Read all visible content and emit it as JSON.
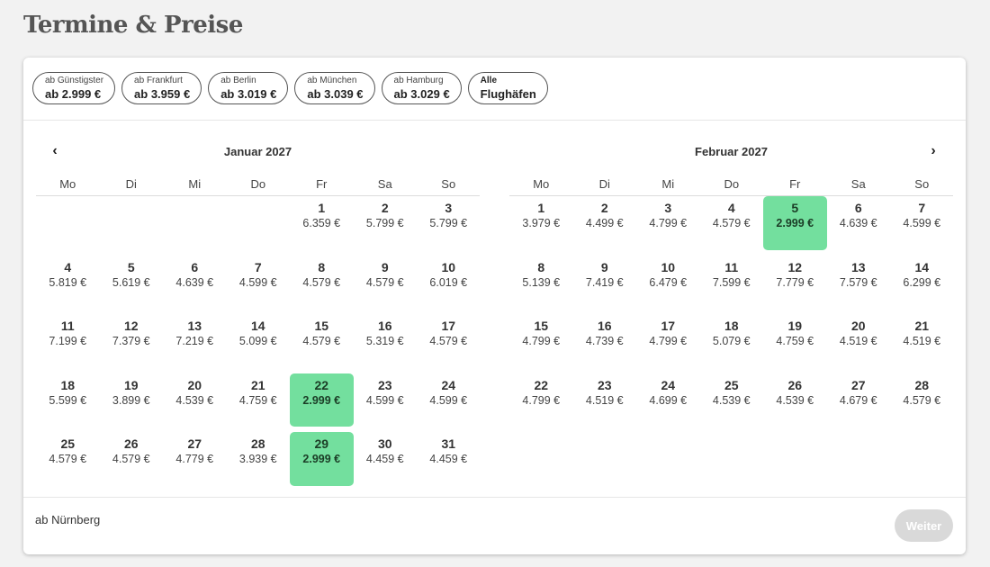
{
  "page_title": "Termine & Preise",
  "airports": [
    {
      "label": "ab Günstigster",
      "price": "ab 2.999 €"
    },
    {
      "label": "ab Frankfurt",
      "price": "ab 3.959 €"
    },
    {
      "label": "ab Berlin",
      "price": "ab 3.019 €"
    },
    {
      "label": "ab München",
      "price": "ab 3.039 €"
    },
    {
      "label": "ab Hamburg",
      "price": "ab 3.029 €"
    },
    {
      "label": "Alle",
      "price": "Flughäfen"
    }
  ],
  "nav": {
    "prev_icon": "chevron-left-icon",
    "next_icon": "chevron-right-icon"
  },
  "weekdays": [
    "Mo",
    "Di",
    "Mi",
    "Do",
    "Fr",
    "Sa",
    "So"
  ],
  "colors": {
    "best_price": "#73df9e",
    "button_disabled": "#d9d9d9"
  },
  "months": [
    {
      "title": "Januar 2027",
      "offset": 4,
      "days": [
        {
          "day": "1",
          "price": "6.359 €"
        },
        {
          "day": "2",
          "price": "5.799 €"
        },
        {
          "day": "3",
          "price": "5.799 €"
        },
        {
          "day": "4",
          "price": "5.819 €"
        },
        {
          "day": "5",
          "price": "5.619 €"
        },
        {
          "day": "6",
          "price": "4.639 €"
        },
        {
          "day": "7",
          "price": "4.599 €"
        },
        {
          "day": "8",
          "price": "4.579 €"
        },
        {
          "day": "9",
          "price": "4.579 €"
        },
        {
          "day": "10",
          "price": "6.019 €"
        },
        {
          "day": "11",
          "price": "7.199 €"
        },
        {
          "day": "12",
          "price": "7.379 €"
        },
        {
          "day": "13",
          "price": "7.219 €"
        },
        {
          "day": "14",
          "price": "5.099 €"
        },
        {
          "day": "15",
          "price": "4.579 €"
        },
        {
          "day": "16",
          "price": "5.319 €"
        },
        {
          "day": "17",
          "price": "4.579 €"
        },
        {
          "day": "18",
          "price": "5.599 €"
        },
        {
          "day": "19",
          "price": "3.899 €"
        },
        {
          "day": "20",
          "price": "4.539 €"
        },
        {
          "day": "21",
          "price": "4.759 €"
        },
        {
          "day": "22",
          "price": "2.999 €",
          "best": true
        },
        {
          "day": "23",
          "price": "4.599 €"
        },
        {
          "day": "24",
          "price": "4.599 €"
        },
        {
          "day": "25",
          "price": "4.579 €"
        },
        {
          "day": "26",
          "price": "4.579 €"
        },
        {
          "day": "27",
          "price": "4.779 €"
        },
        {
          "day": "28",
          "price": "3.939 €"
        },
        {
          "day": "29",
          "price": "2.999 €",
          "best": true
        },
        {
          "day": "30",
          "price": "4.459 €"
        },
        {
          "day": "31",
          "price": "4.459 €"
        }
      ]
    },
    {
      "title": "Februar 2027",
      "offset": 0,
      "days": [
        {
          "day": "1",
          "price": "3.979 €"
        },
        {
          "day": "2",
          "price": "4.499 €"
        },
        {
          "day": "3",
          "price": "4.799 €"
        },
        {
          "day": "4",
          "price": "4.579 €"
        },
        {
          "day": "5",
          "price": "2.999 €",
          "best": true
        },
        {
          "day": "6",
          "price": "4.639 €"
        },
        {
          "day": "7",
          "price": "4.599 €"
        },
        {
          "day": "8",
          "price": "5.139 €"
        },
        {
          "day": "9",
          "price": "7.419 €"
        },
        {
          "day": "10",
          "price": "6.479 €"
        },
        {
          "day": "11",
          "price": "7.599 €"
        },
        {
          "day": "12",
          "price": "7.779 €"
        },
        {
          "day": "13",
          "price": "7.579 €"
        },
        {
          "day": "14",
          "price": "6.299 €"
        },
        {
          "day": "15",
          "price": "4.799 €"
        },
        {
          "day": "16",
          "price": "4.739 €"
        },
        {
          "day": "17",
          "price": "4.799 €"
        },
        {
          "day": "18",
          "price": "5.079 €"
        },
        {
          "day": "19",
          "price": "4.759 €"
        },
        {
          "day": "20",
          "price": "4.519 €"
        },
        {
          "day": "21",
          "price": "4.519 €"
        },
        {
          "day": "22",
          "price": "4.799 €"
        },
        {
          "day": "23",
          "price": "4.519 €"
        },
        {
          "day": "24",
          "price": "4.699 €"
        },
        {
          "day": "25",
          "price": "4.539 €"
        },
        {
          "day": "26",
          "price": "4.539 €"
        },
        {
          "day": "27",
          "price": "4.679 €"
        },
        {
          "day": "28",
          "price": "4.579 €"
        }
      ]
    }
  ],
  "footer": {
    "departure_label": "ab Nürnberg",
    "next_button": "Weiter"
  }
}
